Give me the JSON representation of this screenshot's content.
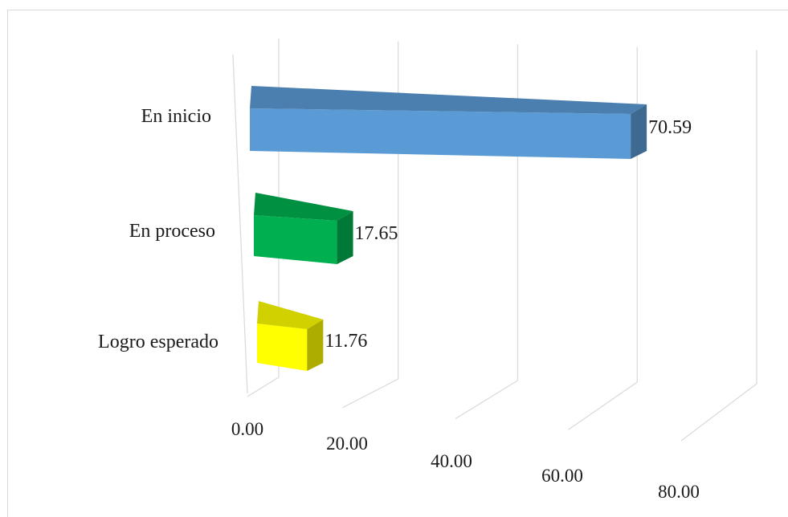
{
  "chart_data": {
    "type": "bar",
    "orientation": "horizontal",
    "style": "3d",
    "categories": [
      "En inicio",
      "En proceso",
      "Logro esperado"
    ],
    "values": [
      70.59,
      17.65,
      11.76
    ],
    "value_labels": [
      "70.59",
      "17.65",
      "11.76"
    ],
    "colors": [
      "#5b9bd5",
      "#00b050",
      "#ffff00"
    ],
    "xlim": [
      0,
      80
    ],
    "x_ticks": [
      "0.00",
      "20.00",
      "40.00",
      "60.00",
      "80.00"
    ],
    "grid": true,
    "legend": "none"
  }
}
